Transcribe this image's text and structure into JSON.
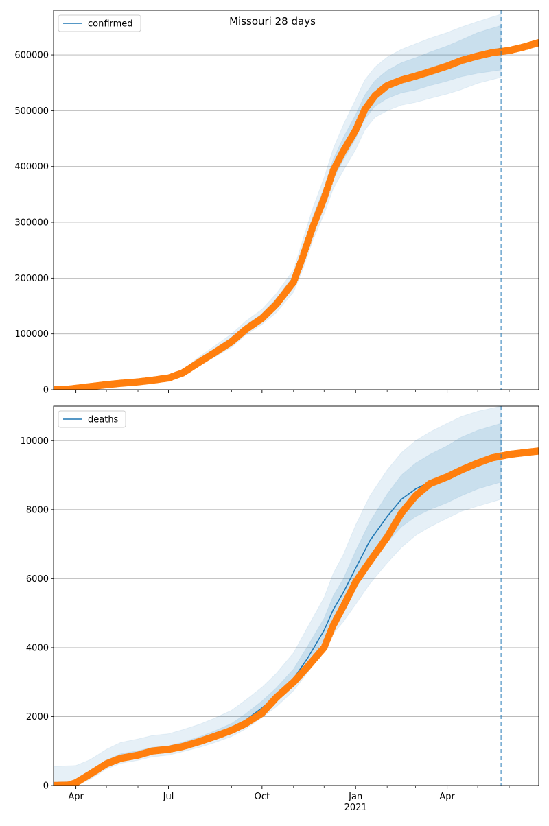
{
  "figure": {
    "title": "Missouri 28 days"
  },
  "x_axis": {
    "start": "2020-03-10",
    "end": "2021-06-30",
    "tick_labels": [
      {
        "date": "2020-04-01",
        "label": "Apr"
      },
      {
        "date": "2020-07-01",
        "label": "Jul"
      },
      {
        "date": "2020-10-01",
        "label": "Oct"
      },
      {
        "date": "2021-01-01",
        "label": "Jan",
        "sublabel": "2021"
      },
      {
        "date": "2021-04-01",
        "label": "Apr"
      }
    ],
    "minor_tick_dates": [
      "2020-05-01",
      "2020-06-01",
      "2020-08-01",
      "2020-09-01",
      "2020-11-01",
      "2020-12-01",
      "2021-02-01",
      "2021-03-01",
      "2021-05-01",
      "2021-06-01"
    ],
    "forecast_start": "2021-05-24"
  },
  "colors": {
    "model": "#1f77b4",
    "observed": "#ff7f0e",
    "band": "#1f77b4",
    "grid": "#b0b0b0"
  },
  "chart_data": [
    {
      "type": "line",
      "panel": "confirmed",
      "legend": {
        "label": "confirmed",
        "placement": "upper-left"
      },
      "grid": "horizontal",
      "ylim": [
        0,
        680000
      ],
      "yticks": [
        0,
        100000,
        200000,
        300000,
        400000,
        500000,
        600000
      ],
      "model": {
        "dates": [
          "2020-03-10",
          "2020-04-01",
          "2020-05-01",
          "2020-06-01",
          "2020-07-01",
          "2020-07-15",
          "2020-08-01",
          "2020-08-15",
          "2020-09-01",
          "2020-09-15",
          "2020-10-01",
          "2020-10-15",
          "2020-11-01",
          "2020-11-10",
          "2020-11-20",
          "2020-12-01",
          "2020-12-10",
          "2020-12-20",
          "2021-01-01",
          "2021-01-10",
          "2021-01-20",
          "2021-02-01",
          "2021-02-15",
          "2021-03-01",
          "2021-03-15",
          "2021-04-01",
          "2021-04-15",
          "2021-05-01",
          "2021-05-24"
        ],
        "values": [
          0,
          2000,
          9000,
          15000,
          22000,
          30000,
          52000,
          68000,
          88000,
          110000,
          130000,
          155000,
          195000,
          240000,
          295000,
          345000,
          395000,
          430000,
          470000,
          505000,
          530000,
          548000,
          560000,
          566000,
          574000,
          584000,
          593000,
          602000,
          612000
        ],
        "band_inner": {
          "lower": [
            0,
            1500,
            8000,
            13000,
            20000,
            27000,
            48000,
            63000,
            82000,
            104000,
            124000,
            147000,
            186000,
            228000,
            282000,
            330000,
            377000,
            412000,
            450000,
            485000,
            508000,
            522000,
            532000,
            537000,
            545000,
            553000,
            561000,
            567000,
            573000
          ],
          "upper": [
            500,
            2500,
            10000,
            17000,
            24000,
            33000,
            56000,
            73000,
            94000,
            116000,
            136000,
            163000,
            204000,
            254000,
            310000,
            362000,
            413000,
            452000,
            493000,
            528000,
            554000,
            572000,
            586000,
            595000,
            605000,
            616000,
            627000,
            640000,
            653000
          ]
        },
        "band_outer": {
          "lower": [
            0,
            800,
            6500,
            11000,
            17000,
            24000,
            44000,
            58000,
            76000,
            98000,
            117000,
            138000,
            175000,
            215000,
            268000,
            315000,
            360000,
            393000,
            430000,
            465000,
            488000,
            500000,
            510000,
            515000,
            522000,
            530000,
            538000,
            549000,
            560000
          ],
          "upper": [
            1500,
            3500,
            12000,
            19000,
            27000,
            36000,
            60000,
            78000,
            100000,
            123000,
            144000,
            172000,
            215000,
            268000,
            326000,
            380000,
            432000,
            475000,
            520000,
            555000,
            578000,
            596000,
            610000,
            620000,
            630000,
            640000,
            650000,
            660000,
            673000
          ]
        }
      },
      "observed": {
        "dates": [
          "2020-03-10",
          "2020-03-25",
          "2020-04-01",
          "2020-04-15",
          "2020-05-01",
          "2020-05-15",
          "2020-06-01",
          "2020-06-15",
          "2020-07-01",
          "2020-07-15",
          "2020-08-01",
          "2020-08-15",
          "2020-09-01",
          "2020-09-15",
          "2020-10-01",
          "2020-10-15",
          "2020-11-01",
          "2020-11-10",
          "2020-11-20",
          "2020-12-01",
          "2020-12-10",
          "2020-12-20",
          "2021-01-01",
          "2021-01-10",
          "2021-01-20",
          "2021-02-01",
          "2021-02-15",
          "2021-03-01",
          "2021-03-15",
          "2021-04-01",
          "2021-04-15",
          "2021-05-01",
          "2021-05-15",
          "2021-06-01",
          "2021-06-15",
          "2021-06-30"
        ],
        "values": [
          0,
          1000,
          2500,
          5500,
          9000,
          11500,
          14000,
          17000,
          21000,
          30000,
          50000,
          66000,
          86000,
          108000,
          128000,
          153000,
          193000,
          238000,
          292000,
          343000,
          393000,
          428000,
          465000,
          502000,
          527000,
          545000,
          555000,
          562000,
          570000,
          580000,
          590000,
          598000,
          604000,
          608000,
          614000,
          622000
        ]
      }
    },
    {
      "type": "line",
      "panel": "deaths",
      "legend": {
        "label": "deaths",
        "placement": "upper-left"
      },
      "grid": "horizontal",
      "ylim": [
        0,
        11000
      ],
      "yticks": [
        0,
        2000,
        4000,
        6000,
        8000,
        10000
      ],
      "model": {
        "dates": [
          "2020-03-10",
          "2020-04-01",
          "2020-04-15",
          "2020-05-01",
          "2020-05-15",
          "2020-06-01",
          "2020-06-15",
          "2020-07-01",
          "2020-07-15",
          "2020-08-01",
          "2020-08-15",
          "2020-09-01",
          "2020-09-15",
          "2020-10-01",
          "2020-10-15",
          "2020-11-01",
          "2020-11-15",
          "2020-12-01",
          "2020-12-10",
          "2020-12-20",
          "2021-01-01",
          "2021-01-15",
          "2021-02-01",
          "2021-02-15",
          "2021-03-01",
          "2021-03-15",
          "2021-04-01",
          "2021-04-15",
          "2021-05-01",
          "2021-05-24"
        ],
        "values": [
          0,
          40,
          300,
          650,
          820,
          900,
          1000,
          1050,
          1150,
          1300,
          1450,
          1650,
          1900,
          2250,
          2600,
          3100,
          3700,
          4500,
          5100,
          5600,
          6300,
          7100,
          7800,
          8300,
          8600,
          8800,
          9000,
          9200,
          9350,
          9600
        ],
        "band_inner": {
          "lower": [
            0,
            20,
            250,
            580,
            740,
            820,
            920,
            980,
            1080,
            1220,
            1360,
            1550,
            1780,
            2120,
            2450,
            2930,
            3500,
            4250,
            4750,
            5150,
            5750,
            6400,
            7050,
            7500,
            7800,
            8000,
            8200,
            8400,
            8600,
            8800
          ],
          "upper": [
            100,
            120,
            380,
            740,
            920,
            1010,
            1110,
            1150,
            1260,
            1420,
            1580,
            1800,
            2080,
            2450,
            2830,
            3380,
            4050,
            4850,
            5500,
            6000,
            6800,
            7650,
            8450,
            9000,
            9350,
            9600,
            9850,
            10100,
            10300,
            10500
          ]
        },
        "band_outer": {
          "lower": [
            0,
            0,
            180,
            480,
            640,
            730,
            830,
            880,
            980,
            1110,
            1240,
            1420,
            1640,
            1970,
            2280,
            2750,
            3280,
            3950,
            4400,
            4750,
            5250,
            5850,
            6450,
            6900,
            7250,
            7500,
            7750,
            7950,
            8100,
            8300
          ],
          "upper": [
            550,
            580,
            750,
            1050,
            1250,
            1350,
            1450,
            1500,
            1620,
            1780,
            1950,
            2180,
            2480,
            2850,
            3250,
            3850,
            4600,
            5450,
            6150,
            6700,
            7550,
            8400,
            9150,
            9650,
            10000,
            10250,
            10500,
            10700,
            10850,
            11000
          ]
        }
      },
      "observed": {
        "dates": [
          "2020-03-10",
          "2020-03-25",
          "2020-04-01",
          "2020-04-15",
          "2020-05-01",
          "2020-05-15",
          "2020-06-01",
          "2020-06-15",
          "2020-07-01",
          "2020-07-15",
          "2020-08-01",
          "2020-08-15",
          "2020-09-01",
          "2020-09-15",
          "2020-10-01",
          "2020-10-15",
          "2020-11-01",
          "2020-11-15",
          "2020-12-01",
          "2020-12-10",
          "2020-12-20",
          "2021-01-01",
          "2021-01-15",
          "2021-02-01",
          "2021-02-15",
          "2021-03-01",
          "2021-03-15",
          "2021-04-01",
          "2021-04-15",
          "2021-05-01",
          "2021-05-15",
          "2021-06-01",
          "2021-06-15",
          "2021-06-30"
        ],
        "values": [
          0,
          10,
          80,
          330,
          630,
          790,
          880,
          1000,
          1050,
          1130,
          1280,
          1420,
          1600,
          1800,
          2100,
          2550,
          3000,
          3450,
          4000,
          4650,
          5200,
          5900,
          6500,
          7200,
          7900,
          8400,
          8750,
          8950,
          9150,
          9350,
          9500,
          9600,
          9650,
          9700
        ]
      }
    }
  ]
}
